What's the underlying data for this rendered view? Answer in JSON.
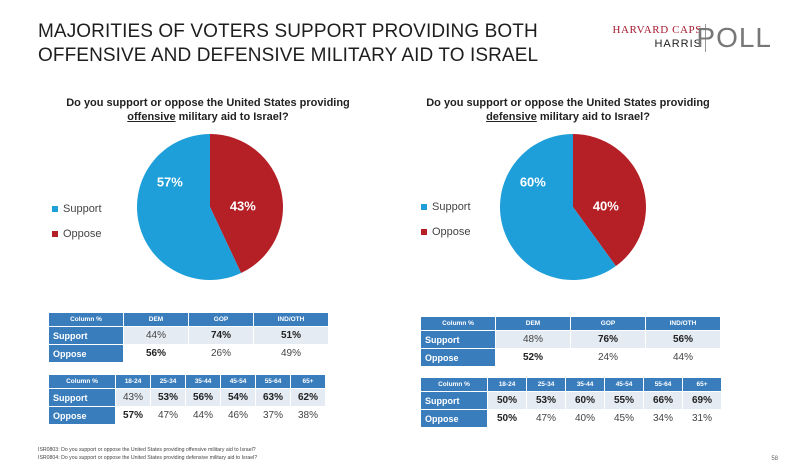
{
  "headline": "MAJORITIES OF VOTERS SUPPORT PROVIDING BOTH OFFENSIVE AND DEFENSIVE MILITARY AID TO ISRAEL",
  "logo": {
    "line1": "HARVARD CAPS",
    "line2": "HARRIS",
    "line3": "POLL"
  },
  "colors": {
    "support": "#1e9fd9",
    "oppose": "#b51f26",
    "header": "#3a7dbd",
    "band": "#e4ebf3"
  },
  "chart_data": [
    {
      "type": "pie",
      "title_pre": "Do you support or oppose the United States providing",
      "title_u": "offensive",
      "title_post": " military aid to Israel?",
      "labels": [
        "Support",
        "Oppose"
      ],
      "values": [
        57,
        43
      ],
      "value_labels": [
        "57%",
        "43%"
      ]
    },
    {
      "type": "pie",
      "title_pre": "Do you support or oppose the United States providing",
      "title_u": "defensive",
      "title_post": " military aid to Israel?",
      "labels": [
        "Support",
        "Oppose"
      ],
      "values": [
        60,
        40
      ],
      "value_labels": [
        "60%",
        "40%"
      ]
    }
  ],
  "tables": [
    {
      "corner": "Column %",
      "headers": [
        "DEM",
        "GOP",
        "IND/OTH"
      ],
      "rows": [
        {
          "label": "Support",
          "cells": [
            "44%",
            "74%",
            "51%"
          ],
          "bold": [
            false,
            true,
            true
          ]
        },
        {
          "label": "Oppose",
          "cells": [
            "56%",
            "26%",
            "49%"
          ],
          "bold": [
            true,
            false,
            false
          ]
        }
      ]
    },
    {
      "corner": "Column %",
      "headers": [
        "18-24",
        "25-34",
        "35-44",
        "45-54",
        "55-64",
        "65+"
      ],
      "rows": [
        {
          "label": "Support",
          "cells": [
            "43%",
            "53%",
            "56%",
            "54%",
            "63%",
            "62%"
          ],
          "bold": [
            false,
            true,
            true,
            true,
            true,
            true
          ]
        },
        {
          "label": "Oppose",
          "cells": [
            "57%",
            "47%",
            "44%",
            "46%",
            "37%",
            "38%"
          ],
          "bold": [
            true,
            false,
            false,
            false,
            false,
            false
          ]
        }
      ]
    },
    {
      "corner": "Column %",
      "headers": [
        "DEM",
        "GOP",
        "IND/OTH"
      ],
      "rows": [
        {
          "label": "Support",
          "cells": [
            "48%",
            "76%",
            "56%"
          ],
          "bold": [
            false,
            true,
            true
          ]
        },
        {
          "label": "Oppose",
          "cells": [
            "52%",
            "24%",
            "44%"
          ],
          "bold": [
            true,
            false,
            false
          ]
        }
      ]
    },
    {
      "corner": "Column %",
      "headers": [
        "18-24",
        "25-34",
        "35-44",
        "45-54",
        "55-64",
        "65+"
      ],
      "rows": [
        {
          "label": "Support",
          "cells": [
            "50%",
            "53%",
            "60%",
            "55%",
            "66%",
            "69%"
          ],
          "bold": [
            true,
            true,
            true,
            true,
            true,
            true
          ]
        },
        {
          "label": "Oppose",
          "cells": [
            "50%",
            "47%",
            "40%",
            "45%",
            "34%",
            "31%"
          ],
          "bold": [
            true,
            false,
            false,
            false,
            false,
            false
          ]
        }
      ]
    }
  ],
  "footnotes": [
    "ISR0803: Do you support or oppose the United States providing offensive military aid to Israel?",
    "ISR0804: Do you support or oppose the United States providing defensive military aid to Israel?"
  ],
  "page_number": "58"
}
